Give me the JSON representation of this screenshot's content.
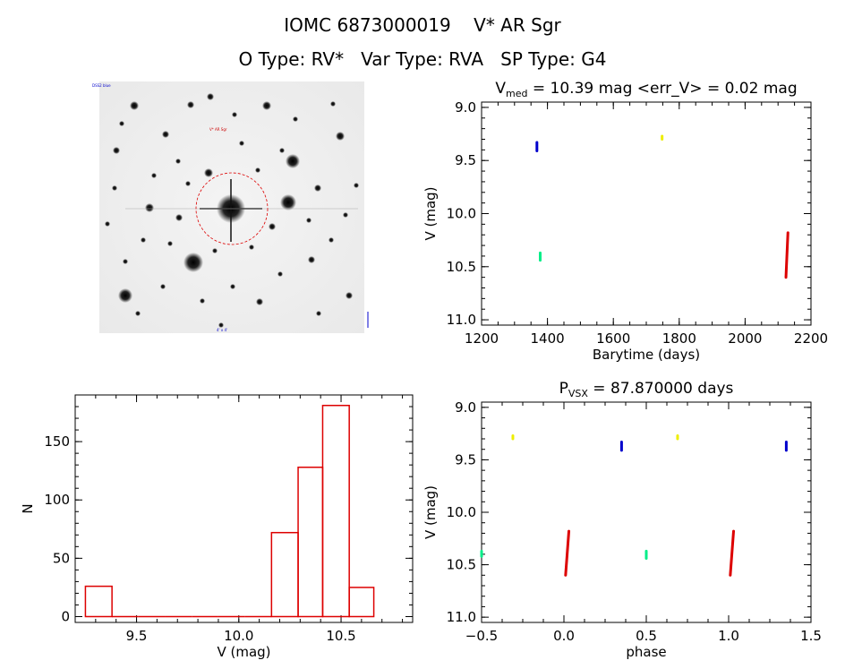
{
  "header": {
    "title": "IOMC 6873000019    V* AR Sgr",
    "subtitle": "O Type: RV*   Var Type: RVA   SP Type: G4"
  },
  "image_panel": {
    "label_topleft": "DSS2 blue",
    "label_target": "V* AR Sgr",
    "label_bottom": "4' x 4'"
  },
  "colors": {
    "red": "#dd0000",
    "blue": "#0000cc",
    "yellow": "#eeee00",
    "green": "#00ee88"
  },
  "chart_data": [
    {
      "id": "lightcurve",
      "type": "scatter",
      "title": {
        "main": "V",
        "sub": "med",
        "rest": " = 10.39 mag <err_V> = 0.02 mag"
      },
      "xlabel": "Barytime (days)",
      "ylabel": "V (mag)",
      "xlim": [
        1200,
        2200
      ],
      "ylim": [
        11.05,
        8.95
      ],
      "xticks": [
        1200,
        1400,
        1600,
        1800,
        2000,
        2200
      ],
      "xtick_labels": [
        "1200",
        "1400",
        "1600",
        "1800",
        "2000",
        "2200"
      ],
      "yticks": [
        9.0,
        9.5,
        10.0,
        10.5,
        11.0
      ],
      "ytick_labels": [
        "9.0",
        "9.5",
        "10.0",
        "10.5",
        "11.0"
      ],
      "series": [
        {
          "color": "blue",
          "segments": [
            [
              1368,
              9.33,
              1368,
              9.41
            ]
          ]
        },
        {
          "color": "yellow",
          "segments": [
            [
              1748,
              9.27,
              1748,
              9.3
            ]
          ]
        },
        {
          "color": "green",
          "segments": [
            [
              1378,
              10.37,
              1378,
              10.44
            ]
          ]
        },
        {
          "color": "red",
          "segments": [
            [
              2124,
              10.6,
              2130,
              10.18
            ]
          ]
        }
      ]
    },
    {
      "id": "histogram",
      "type": "bar",
      "xlabel": "V (mag)",
      "ylabel": "N",
      "xlim": [
        9.2,
        10.85
      ],
      "ylim": [
        -5,
        190
      ],
      "xticks": [
        9.5,
        10.0,
        10.5
      ],
      "xtick_labels": [
        "9.5",
        "10.0",
        "10.5"
      ],
      "yticks": [
        0,
        50,
        100,
        150
      ],
      "ytick_labels": [
        "0",
        "50",
        "100",
        "150"
      ],
      "bin_edges": [
        9.25,
        9.38,
        9.51,
        9.64,
        9.77,
        9.9,
        10.03,
        10.16,
        10.29,
        10.41,
        10.54,
        10.66
      ],
      "counts": [
        26,
        0,
        0,
        0,
        0,
        0,
        0,
        72,
        128,
        181,
        25
      ]
    },
    {
      "id": "phased",
      "type": "scatter",
      "title": {
        "main": "P",
        "sub": "VSX",
        "rest": " = 87.870000 days"
      },
      "xlabel": "phase",
      "ylabel": "V (mag)",
      "xlim": [
        -0.5,
        1.5
      ],
      "ylim": [
        11.05,
        8.95
      ],
      "xticks": [
        -0.5,
        0.0,
        0.5,
        1.0,
        1.5
      ],
      "xtick_labels": [
        "−0.5",
        "0.0",
        "0.5",
        "1.0",
        "1.5"
      ],
      "yticks": [
        9.0,
        9.5,
        10.0,
        10.5,
        11.0
      ],
      "ytick_labels": [
        "9.0",
        "9.5",
        "10.0",
        "10.5",
        "11.0"
      ],
      "series": [
        {
          "color": "yellow",
          "segments": [
            [
              -0.31,
              9.27,
              -0.31,
              9.3
            ],
            [
              0.69,
              9.27,
              0.69,
              9.3
            ]
          ]
        },
        {
          "color": "blue",
          "segments": [
            [
              0.35,
              9.33,
              0.35,
              9.41
            ],
            [
              1.35,
              9.33,
              1.35,
              9.41
            ]
          ]
        },
        {
          "color": "green",
          "segments": [
            [
              -0.5,
              10.37,
              -0.5,
              10.42
            ],
            [
              0.5,
              10.37,
              0.5,
              10.44
            ]
          ]
        },
        {
          "color": "red",
          "segments": [
            [
              0.01,
              10.6,
              0.03,
              10.18
            ],
            [
              1.01,
              10.6,
              1.03,
              10.18
            ]
          ]
        }
      ]
    }
  ]
}
